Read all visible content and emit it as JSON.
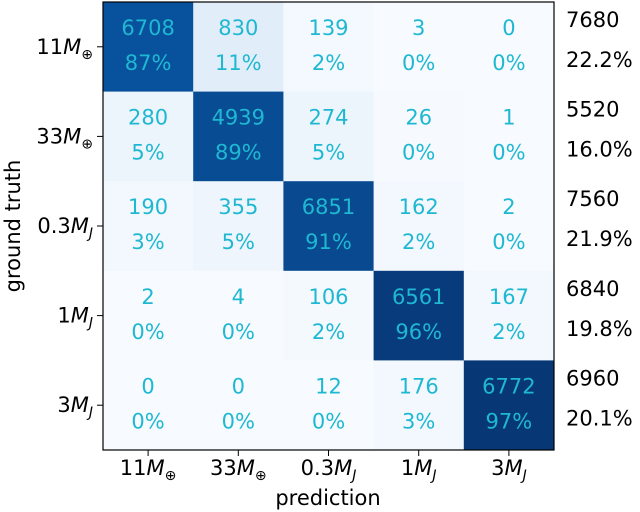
{
  "chart_data": {
    "type": "heatmap",
    "title": "",
    "xlabel": "prediction",
    "ylabel": "ground truth",
    "x_categories": [
      "11M⊕",
      "33M⊕",
      "0.3MJ",
      "1MJ",
      "3MJ"
    ],
    "y_categories": [
      "11M⊕",
      "33M⊕",
      "0.3MJ",
      "1MJ",
      "3MJ"
    ],
    "category_labels": [
      {
        "value": "11",
        "symbol": "M",
        "sub": "⊕"
      },
      {
        "value": "33",
        "symbol": "M",
        "sub": "⊕"
      },
      {
        "value": "0.3",
        "symbol": "M",
        "sub": "J"
      },
      {
        "value": "1",
        "symbol": "M",
        "sub": "J"
      },
      {
        "value": "3",
        "symbol": "M",
        "sub": "J"
      }
    ],
    "counts": [
      [
        6708,
        830,
        139,
        3,
        0
      ],
      [
        280,
        4939,
        274,
        26,
        1
      ],
      [
        190,
        355,
        6851,
        162,
        2
      ],
      [
        2,
        4,
        106,
        6561,
        167
      ],
      [
        0,
        0,
        12,
        176,
        6772
      ]
    ],
    "percents": [
      [
        "87%",
        "11%",
        "2%",
        "0%",
        "0%"
      ],
      [
        "5%",
        "89%",
        "5%",
        "0%",
        "0%"
      ],
      [
        "3%",
        "5%",
        "91%",
        "2%",
        "0%"
      ],
      [
        "0%",
        "0%",
        "2%",
        "96%",
        "2%"
      ],
      [
        "0%",
        "0%",
        "0%",
        "3%",
        "97%"
      ]
    ],
    "row_totals": [
      7680,
      5520,
      7560,
      6840,
      6960
    ],
    "row_total_percents": [
      "22.2%",
      "16.0%",
      "21.9%",
      "19.8%",
      "20.1%"
    ],
    "colormap": "Blues",
    "text_color": "#1fb8d2",
    "grid": false
  }
}
